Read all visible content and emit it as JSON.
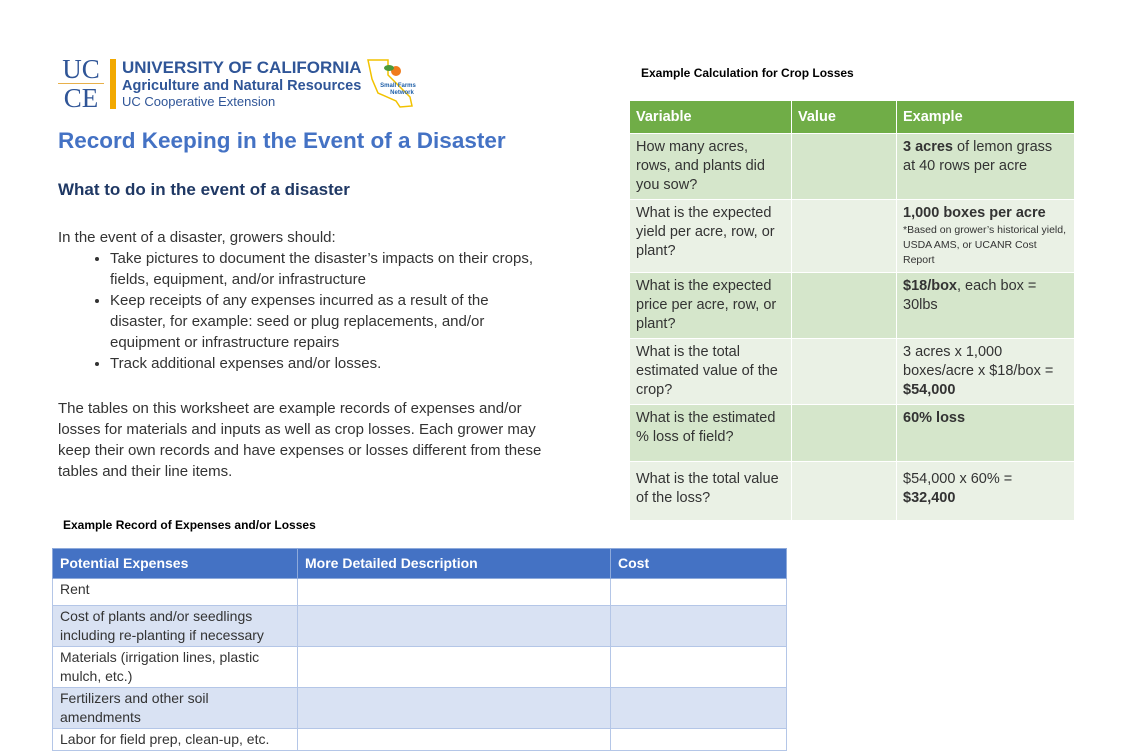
{
  "logo": {
    "ucce_top": "UC",
    "ucce_bottom": "CE",
    "org_line1": "UNIVERSITY OF CALIFORNIA",
    "org_line2": "Agriculture and Natural Resources",
    "org_line3": "UC Cooperative Extension",
    "partner": "Small Farms Network"
  },
  "title": "Record Keeping in the Event of a Disaster",
  "subtitle": "What to do in the event of a disaster",
  "intro": "In the event of a disaster, growers should:",
  "bullets": [
    "Take pictures to document the disaster’s impacts on their crops, fields, equipment, and/or infrastructure",
    "Keep receipts of any expenses incurred as a result of the disaster, for example: seed or plug replacements, and/or equipment or infrastructure repairs",
    "Track additional expenses and/or losses."
  ],
  "paragraph": "The tables on this worksheet are example records of expenses and/or losses for materials and inputs as well as crop losses. Each grower may keep their own records and have expenses or losses different from these tables and their line items.",
  "crop_table": {
    "caption": "Example Calculation for Crop Losses",
    "headers": [
      "Variable",
      "Value",
      "Example"
    ],
    "rows": [
      {
        "variable": "How many acres, rows, and plants did you sow?",
        "value": "",
        "ex_bold": "3 acres",
        "ex_text": " of lemon grass at 40 rows per acre",
        "note": ""
      },
      {
        "variable": "What is the expected yield per acre, row, or plant?",
        "value": "",
        "ex_bold": "1,000 boxes per acre",
        "ex_text": "",
        "note": "*Based on grower’s historical yield, USDA AMS, or UCANR Cost Report"
      },
      {
        "variable": "What is the expected price per acre, row, or plant?",
        "value": "",
        "ex_bold": "$18/box",
        "ex_text": ", each box = 30lbs",
        "note": ""
      },
      {
        "variable": "What is the total estimated value of the crop?",
        "value": "",
        "ex_text_pre": "3 acres x 1,000 boxes/acre x $18/box = ",
        "ex_bold_post": "$54,000"
      },
      {
        "variable": "What is the estimated % loss of field?",
        "value": "",
        "ex_bold": "60% loss",
        "ex_text": "",
        "note": ""
      },
      {
        "variable": "What is the total value of the loss?",
        "value": "",
        "ex_text_pre": "$54,000 x 60% =  ",
        "ex_bold_post": "$32,400"
      }
    ]
  },
  "expense_table": {
    "caption": "Example Record of Expenses and/or Losses",
    "headers": [
      "Potential Expenses",
      "More Detailed Description",
      "Cost"
    ],
    "rows": [
      "Rent",
      "Cost of plants and/or seedlings including re-planting if necessary",
      "Materials (irrigation lines, plastic mulch, etc.)",
      "Fertilizers and other soil amendments",
      "Labor for field prep, clean-up, etc."
    ]
  },
  "colors": {
    "title_blue": "#4472c4",
    "green_header": "#70ad47",
    "blue_header": "#4472c4",
    "logo_gold": "#f2a900"
  }
}
